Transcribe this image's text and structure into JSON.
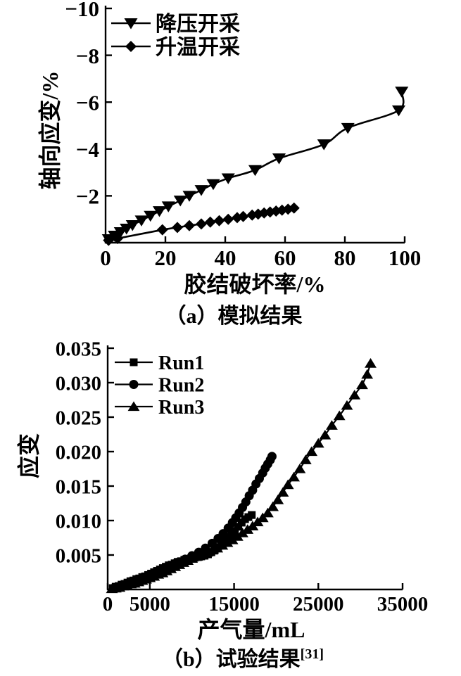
{
  "page": {
    "background": "#ffffff",
    "ink": "#000000"
  },
  "chart_data": [
    {
      "id": "a",
      "type": "line",
      "caption": "（a）模拟结果",
      "xlabel": "胶结破坏率/%",
      "ylabel": "轴向应变/%",
      "xlim": [
        0,
        100
      ],
      "ylim": [
        0,
        -10
      ],
      "grid": false,
      "legend_position": "top-left-inside",
      "xticks": [
        {
          "v": 0,
          "label": "0"
        },
        {
          "v": 20,
          "label": "20"
        },
        {
          "v": 40,
          "label": "40"
        },
        {
          "v": 60,
          "label": "60"
        },
        {
          "v": 80,
          "label": "80"
        },
        {
          "v": 100,
          "label": "100"
        }
      ],
      "yticks": [
        {
          "v": -2,
          "label": "−2"
        },
        {
          "v": -4,
          "label": "−4"
        },
        {
          "v": -6,
          "label": "−6"
        },
        {
          "v": -8,
          "label": "−8"
        },
        {
          "v": -10,
          "label": "−10"
        }
      ],
      "series": [
        {
          "name": "降压开采",
          "marker": "triangle-down",
          "color": "#000000",
          "smooth": true,
          "points": [
            [
              1,
              -0.15
            ],
            [
              3,
              -0.3
            ],
            [
              5,
              -0.45
            ],
            [
              7,
              -0.6
            ],
            [
              9,
              -0.75
            ],
            [
              12,
              -0.95
            ],
            [
              15,
              -1.15
            ],
            [
              18,
              -1.35
            ],
            [
              21,
              -1.55
            ],
            [
              25,
              -1.8
            ],
            [
              28,
              -2.0
            ],
            [
              32,
              -2.25
            ],
            [
              36,
              -2.5
            ],
            [
              41,
              -2.75
            ],
            [
              50,
              -3.1
            ],
            [
              58,
              -3.6
            ],
            [
              73,
              -4.2
            ],
            [
              81,
              -4.9
            ],
            [
              98,
              -5.65
            ],
            [
              99,
              -6.45
            ]
          ]
        },
        {
          "name": "升温开采",
          "marker": "diamond",
          "color": "#000000",
          "smooth": true,
          "points": [
            [
              1,
              -0.1
            ],
            [
              4,
              -0.18
            ],
            [
              19,
              -0.55
            ],
            [
              24,
              -0.65
            ],
            [
              28,
              -0.73
            ],
            [
              32,
              -0.8
            ],
            [
              35,
              -0.88
            ],
            [
              38,
              -0.94
            ],
            [
              41,
              -1.0
            ],
            [
              44,
              -1.07
            ],
            [
              46,
              -1.12
            ],
            [
              49,
              -1.18
            ],
            [
              51,
              -1.22
            ],
            [
              53,
              -1.27
            ],
            [
              55,
              -1.31
            ],
            [
              57,
              -1.35
            ],
            [
              59,
              -1.39
            ],
            [
              61,
              -1.43
            ],
            [
              63,
              -1.48
            ]
          ]
        }
      ]
    },
    {
      "id": "b",
      "type": "line",
      "caption": "（b）试验结果",
      "caption_superscript": "[31]",
      "xlabel": "产气量/mL",
      "ylabel": "应变",
      "xlim": [
        0,
        35000
      ],
      "ylim": [
        0,
        0.035
      ],
      "grid": false,
      "legend_position": "top-left-inside",
      "xticks": [
        {
          "v": 0,
          "label": "0"
        },
        {
          "v": 5000,
          "label": "5000"
        },
        {
          "v": 15000,
          "label": "15000"
        },
        {
          "v": 25000,
          "label": "25000"
        },
        {
          "v": 35000,
          "label": "35000"
        }
      ],
      "yticks": [
        {
          "v": 0.005,
          "label": "0.005"
        },
        {
          "v": 0.01,
          "label": "0.010"
        },
        {
          "v": 0.015,
          "label": "0.015"
        },
        {
          "v": 0.02,
          "label": "0.020"
        },
        {
          "v": 0.025,
          "label": "0.025"
        },
        {
          "v": 0.03,
          "label": "0.030"
        },
        {
          "v": 0.035,
          "label": "0.035"
        }
      ],
      "series": [
        {
          "name": "Run1",
          "marker": "square",
          "color": "#000000",
          "smooth": false,
          "points": [
            [
              600,
              0.0002
            ],
            [
              950,
              0.0004
            ],
            [
              1300,
              0.0005
            ],
            [
              1650,
              0.0007
            ],
            [
              2000,
              0.0008
            ],
            [
              2350,
              0.001
            ],
            [
              2700,
              0.0012
            ],
            [
              3050,
              0.0013
            ],
            [
              3400,
              0.0015
            ],
            [
              3750,
              0.0016
            ],
            [
              4100,
              0.0018
            ],
            [
              4450,
              0.0019
            ],
            [
              4800,
              0.0021
            ],
            [
              5150,
              0.0023
            ],
            [
              5500,
              0.0025
            ],
            [
              5850,
              0.0027
            ],
            [
              6200,
              0.0029
            ],
            [
              6550,
              0.0031
            ],
            [
              6900,
              0.0033
            ],
            [
              7250,
              0.0035
            ],
            [
              7600,
              0.0036
            ],
            [
              7950,
              0.0038
            ],
            [
              8300,
              0.004
            ],
            [
              8700,
              0.0041
            ],
            [
              9100,
              0.0043
            ],
            [
              9500,
              0.0044
            ],
            [
              9900,
              0.0045
            ],
            [
              10300,
              0.0046
            ],
            [
              10700,
              0.0047
            ],
            [
              11100,
              0.0048
            ],
            [
              11500,
              0.0049
            ],
            [
              11900,
              0.0051
            ],
            [
              12300,
              0.0054
            ],
            [
              12700,
              0.0057
            ],
            [
              13100,
              0.0061
            ],
            [
              13500,
              0.0065
            ],
            [
              13900,
              0.007
            ],
            [
              14300,
              0.0075
            ],
            [
              14700,
              0.008
            ],
            [
              15100,
              0.0085
            ],
            [
              15500,
              0.0091
            ],
            [
              15900,
              0.0097
            ],
            [
              16300,
              0.0102
            ],
            [
              16700,
              0.0105
            ],
            [
              17100,
              0.0108
            ]
          ]
        },
        {
          "name": "Run2",
          "marker": "circle",
          "color": "#000000",
          "smooth": false,
          "points": [
            [
              1200,
              0.0003
            ],
            [
              2200,
              0.0007
            ],
            [
              3200,
              0.0011
            ],
            [
              4200,
              0.0016
            ],
            [
              5200,
              0.0021
            ],
            [
              6200,
              0.0027
            ],
            [
              7200,
              0.0033
            ],
            [
              8200,
              0.0039
            ],
            [
              9200,
              0.0044
            ],
            [
              10000,
              0.0049
            ],
            [
              10800,
              0.0054
            ],
            [
              11600,
              0.006
            ],
            [
              12400,
              0.0067
            ],
            [
              13100,
              0.0074
            ],
            [
              13700,
              0.0081
            ],
            [
              14300,
              0.0089
            ],
            [
              14800,
              0.0097
            ],
            [
              15200,
              0.0104
            ],
            [
              15600,
              0.0111
            ],
            [
              16000,
              0.0119
            ],
            [
              16400,
              0.0127
            ],
            [
              16800,
              0.0136
            ],
            [
              17200,
              0.0144
            ],
            [
              17600,
              0.0153
            ],
            [
              18000,
              0.0161
            ],
            [
              18400,
              0.0169
            ],
            [
              18700,
              0.0176
            ],
            [
              19000,
              0.0182
            ],
            [
              19300,
              0.0188
            ],
            [
              19500,
              0.0193
            ]
          ]
        },
        {
          "name": "Run3",
          "marker": "triangle-up",
          "color": "#000000",
          "smooth": false,
          "points": [
            [
              500,
              0.0001
            ],
            [
              950,
              0.0002
            ],
            [
              1400,
              0.0003
            ],
            [
              1850,
              0.0005
            ],
            [
              2300,
              0.0006
            ],
            [
              2750,
              0.0008
            ],
            [
              3200,
              0.0009
            ],
            [
              3650,
              0.0011
            ],
            [
              4100,
              0.0013
            ],
            [
              4550,
              0.0015
            ],
            [
              5000,
              0.0017
            ],
            [
              5500,
              0.0019
            ],
            [
              6000,
              0.0022
            ],
            [
              6500,
              0.0024
            ],
            [
              7000,
              0.0027
            ],
            [
              7500,
              0.003
            ],
            [
              8000,
              0.0033
            ],
            [
              8500,
              0.0036
            ],
            [
              9000,
              0.0039
            ],
            [
              9500,
              0.0042
            ],
            [
              10000,
              0.0045
            ],
            [
              10600,
              0.0048
            ],
            [
              11200,
              0.0051
            ],
            [
              11800,
              0.0054
            ],
            [
              12400,
              0.0057
            ],
            [
              13000,
              0.006
            ],
            [
              13600,
              0.0064
            ],
            [
              14200,
              0.0068
            ],
            [
              14800,
              0.0072
            ],
            [
              15400,
              0.0077
            ],
            [
              16000,
              0.0082
            ],
            [
              16600,
              0.0087
            ],
            [
              17200,
              0.0092
            ],
            [
              17800,
              0.0098
            ],
            [
              18400,
              0.0104
            ],
            [
              19000,
              0.0111
            ],
            [
              19600,
              0.012
            ],
            [
              20200,
              0.013
            ],
            [
              20800,
              0.0141
            ],
            [
              21400,
              0.0152
            ],
            [
              22100,
              0.0163
            ],
            [
              22800,
              0.0175
            ],
            [
              23500,
              0.0188
            ],
            [
              24200,
              0.02
            ],
            [
              25000,
              0.0212
            ],
            [
              25800,
              0.0224
            ],
            [
              26600,
              0.0238
            ],
            [
              27500,
              0.0252
            ],
            [
              28400,
              0.0267
            ],
            [
              29300,
              0.0282
            ],
            [
              30200,
              0.0297
            ],
            [
              30800,
              0.0312
            ],
            [
              31200,
              0.0328
            ]
          ]
        }
      ]
    }
  ]
}
